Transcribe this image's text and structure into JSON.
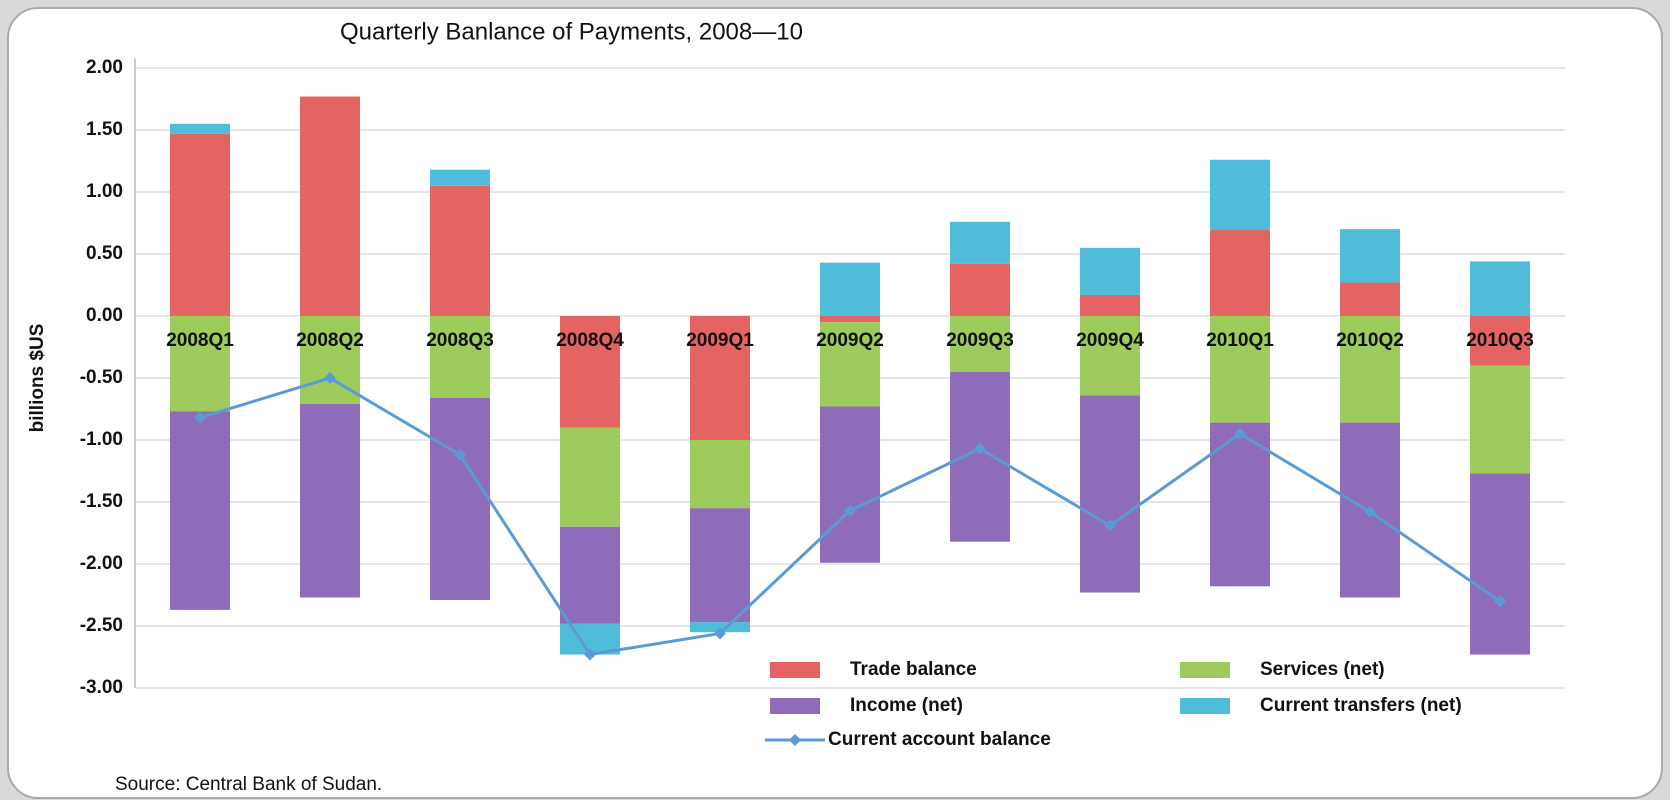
{
  "chart_data": {
    "type": "bar",
    "stacked": true,
    "title": "Quarterly Banlance of Payments, 2008—10",
    "y_label": "billions $US",
    "source": "Source: Central Bank of Sudan.",
    "categories": [
      "2008Q1",
      "2008Q2",
      "2008Q3",
      "2008Q4",
      "2009Q1",
      "2009Q2",
      "2009Q3",
      "2009Q4",
      "2010Q1",
      "2010Q2",
      "2010Q3"
    ],
    "series": [
      {
        "name": "Trade balance",
        "color": "#e46464",
        "values": [
          1.47,
          1.77,
          1.05,
          -0.9,
          -1.0,
          -0.05,
          0.42,
          0.17,
          0.7,
          0.27,
          -0.4
        ]
      },
      {
        "name": "Services (net)",
        "color": "#9dcb5c",
        "values": [
          -0.77,
          -0.71,
          -0.66,
          -0.8,
          -0.55,
          -0.68,
          -0.45,
          -0.64,
          -0.86,
          -0.86,
          -0.87
        ]
      },
      {
        "name": "Income (net)",
        "color": "#8e6cba",
        "values": [
          -1.6,
          -1.56,
          -1.63,
          -0.78,
          -0.92,
          -1.26,
          -1.37,
          -1.59,
          -1.32,
          -1.41,
          -1.46
        ]
      },
      {
        "name": "Current transfers (net)",
        "color": "#4fbdd9",
        "values": [
          0.08,
          0,
          0.13,
          -0.25,
          -0.08,
          0.43,
          0.34,
          0.38,
          0.56,
          0.43,
          0.44
        ]
      },
      {
        "name": "Current account balance",
        "type": "line",
        "color": "#5b9bd5",
        "values": [
          -0.82,
          -0.5,
          -1.12,
          -2.73,
          -2.56,
          -1.57,
          -1.07,
          -1.69,
          -0.95,
          -1.58,
          -2.3
        ]
      }
    ],
    "ylim": [
      -3,
      2
    ],
    "yticks": [
      {
        "value": -3,
        "label": "-3.00"
      },
      {
        "value": -2.5,
        "label": "-2.50"
      },
      {
        "value": -2,
        "label": "-2.00"
      },
      {
        "value": -1.5,
        "label": "-1.50"
      },
      {
        "value": -1,
        "label": "-1.00"
      },
      {
        "value": -0.5,
        "label": "-0.50"
      },
      {
        "value": 0,
        "label": "0.00"
      },
      {
        "value": 0.5,
        "label": "0.50"
      },
      {
        "value": 1,
        "label": "1.00"
      },
      {
        "value": 1.5,
        "label": "1.50"
      },
      {
        "value": 2,
        "label": "2.00"
      }
    ],
    "grid": true,
    "legend": "bottom-right"
  }
}
